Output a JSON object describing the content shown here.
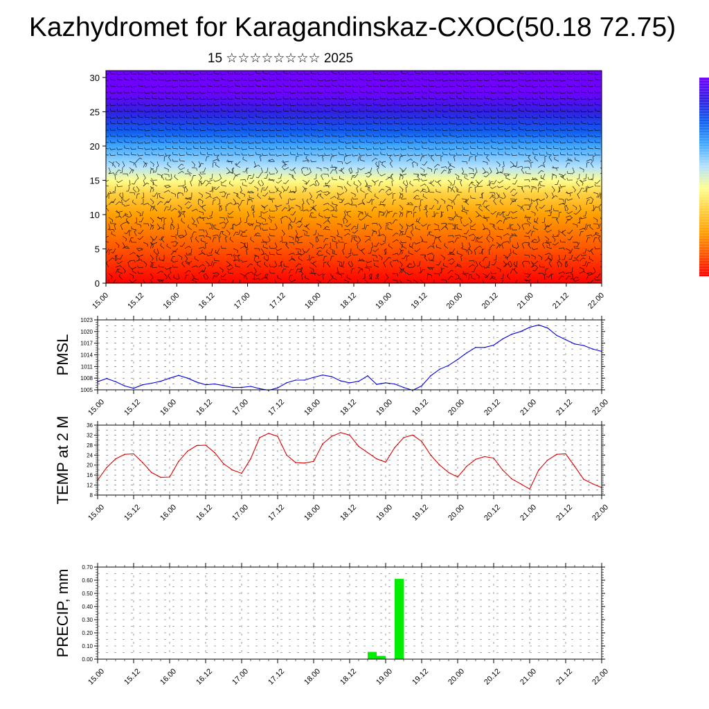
{
  "title": "Kazhydromet for Karagandinskaz-CXOC(50.18 72.75)",
  "subtitle": "15 ☆☆☆☆☆☆☆☆ 2025",
  "colors": {
    "pmsl_line": "#0000dd",
    "temp_line": "#dd0000",
    "precip_bar": "#00ee00",
    "cross_section_palette": [
      "#ff0000",
      "#ff5500",
      "#ffa000",
      "#ffd040",
      "#ffff90",
      "#b0e0ff",
      "#40a8ff",
      "#1060f0",
      "#3020e0",
      "#7000ff"
    ]
  },
  "chart_data": [
    {
      "type": "heatmap",
      "name": "height-time cross-section with wind barbs",
      "x_tick_labels": [
        "15.00",
        "15.12",
        "16.00",
        "16.12",
        "17.00",
        "17.12",
        "18.00",
        "18.12",
        "19.00",
        "19.12",
        "20.00",
        "20.12",
        "21.00",
        "21.12",
        "22.00"
      ],
      "y_tick_labels": [
        "0",
        "5",
        "10",
        "15",
        "20",
        "25",
        "30"
      ],
      "ylim": [
        0,
        31
      ],
      "layers": [
        {
          "height": 0,
          "level": 0
        },
        {
          "height": 5,
          "level": 1
        },
        {
          "height": 10,
          "level": 2
        },
        {
          "height": 13,
          "level": 3
        },
        {
          "height": 15,
          "level": 4
        },
        {
          "height": 17,
          "level": 5
        },
        {
          "height": 20,
          "level": 6
        },
        {
          "height": 22,
          "level": 7
        },
        {
          "height": 25,
          "level": 8
        },
        {
          "height": 28,
          "level": 9
        }
      ],
      "colorbar": true
    },
    {
      "type": "line",
      "ylabel": "PMSL",
      "x_tick_labels": [
        "15.00",
        "15.12",
        "16.00",
        "16.12",
        "17.00",
        "17.12",
        "18.00",
        "18.12",
        "19.00",
        "19.12",
        "20.00",
        "20.12",
        "21.00",
        "21.12",
        "22.00"
      ],
      "y_tick_labels": [
        "1005",
        "1008",
        "1011",
        "1014",
        "1017",
        "1020",
        "1023"
      ],
      "ylim": [
        1005,
        1023
      ],
      "xlim": [
        0,
        56
      ],
      "x": [
        0,
        1,
        2,
        3,
        4,
        5,
        6,
        7,
        8,
        9,
        10,
        11,
        12,
        13,
        14,
        15,
        16,
        17,
        18,
        19,
        20,
        21,
        22,
        23,
        24,
        25,
        26,
        27,
        28,
        29,
        30,
        31,
        32,
        33,
        34,
        35,
        36,
        37,
        38,
        39,
        40,
        41,
        42,
        43,
        44,
        45,
        46,
        47,
        48,
        49,
        50,
        51,
        52,
        53,
        54,
        55,
        56
      ],
      "values": [
        1007.1,
        1007.9,
        1007.1,
        1006.0,
        1005.4,
        1006.3,
        1006.7,
        1007.2,
        1008.0,
        1008.7,
        1008.0,
        1007.0,
        1006.3,
        1006.5,
        1006.1,
        1005.6,
        1005.6,
        1005.9,
        1005.3,
        1004.9,
        1005.5,
        1006.8,
        1007.5,
        1007.5,
        1008.2,
        1008.8,
        1008.4,
        1007.3,
        1006.8,
        1007.2,
        1008.6,
        1006.4,
        1006.8,
        1006.5,
        1005.6,
        1004.9,
        1006.0,
        1008.6,
        1010.3,
        1011.3,
        1012.8,
        1014.5,
        1015.9,
        1015.9,
        1016.5,
        1018.1,
        1019.3,
        1020.0,
        1021.1,
        1021.7,
        1020.9,
        1019.0,
        1017.9,
        1016.8,
        1016.4,
        1015.5,
        1014.9
      ]
    },
    {
      "type": "line",
      "ylabel": "TEMP at 2 M",
      "x_tick_labels": [
        "15.00",
        "15.12",
        "16.00",
        "16.12",
        "17.00",
        "17.12",
        "18.00",
        "18.12",
        "19.00",
        "19.12",
        "20.00",
        "20.12",
        "21.00",
        "21.12",
        "22.00"
      ],
      "y_tick_labels": [
        "8",
        "12",
        "16",
        "20",
        "24",
        "28",
        "32",
        "36"
      ],
      "ylim": [
        8,
        36
      ],
      "xlim": [
        0,
        56
      ],
      "x": [
        0,
        1,
        2,
        3,
        4,
        5,
        6,
        7,
        8,
        9,
        10,
        11,
        12,
        13,
        14,
        15,
        16,
        17,
        18,
        19,
        20,
        21,
        22,
        23,
        24,
        25,
        26,
        27,
        28,
        29,
        30,
        31,
        32,
        33,
        34,
        35,
        36,
        37,
        38,
        39,
        40,
        41,
        42,
        43,
        44,
        45,
        46,
        47,
        48,
        49,
        50,
        51,
        52,
        53,
        54,
        55,
        56
      ],
      "values": [
        14.0,
        19.0,
        22.5,
        24.3,
        24.5,
        21.0,
        17.0,
        15.1,
        15.2,
        21.5,
        25.6,
        27.8,
        28.0,
        25.0,
        20.5,
        18.0,
        16.7,
        22.5,
        31.0,
        32.7,
        31.5,
        24.0,
        21.0,
        20.8,
        21.5,
        28.5,
        31.5,
        33.0,
        32.0,
        27.5,
        25.0,
        22.5,
        21.2,
        27.0,
        31.0,
        32.0,
        29.5,
        24.0,
        20.0,
        17.0,
        15.2,
        19.5,
        22.3,
        23.4,
        22.8,
        18.0,
        14.5,
        12.5,
        10.4,
        18.0,
        22.0,
        24.3,
        24.5,
        19.5,
        14.3,
        12.5,
        11.0
      ]
    },
    {
      "type": "bar",
      "ylabel": "PRECIP, mm",
      "x_tick_labels": [
        "15.00",
        "15.12",
        "16.00",
        "16.12",
        "17.00",
        "17.12",
        "18.00",
        "18.12",
        "19.00",
        "19.12",
        "20.00",
        "20.12",
        "21.00",
        "21.12",
        "22.00"
      ],
      "y_tick_labels": [
        "0.00",
        "0.10",
        "0.20",
        "0.30",
        "0.40",
        "0.50",
        "0.60",
        "0.70"
      ],
      "ylim": [
        0,
        0.7
      ],
      "xlim": [
        0,
        56
      ],
      "x": [
        30.5,
        31.5,
        33.5
      ],
      "values": [
        0.055,
        0.025,
        0.61
      ]
    }
  ]
}
